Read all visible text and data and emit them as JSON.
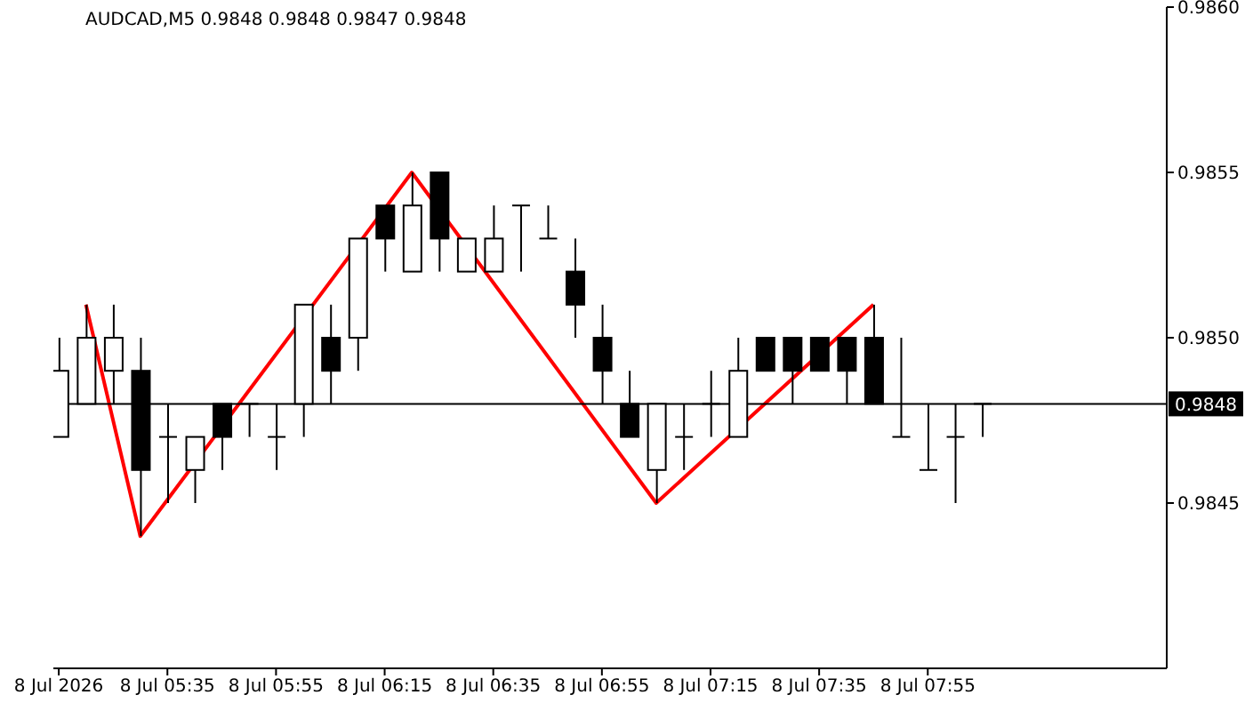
{
  "chart_data": {
    "type": "candlestick",
    "title": "AUDCAD,M5 0.9848 0.9848 0.9847 0.9848",
    "xlim": [
      "2026-07-08T05:14",
      "2026-07-08T08:39"
    ],
    "xticks": [
      {
        "value": "2026-07-08T05:15",
        "label": "8 Jul 2026"
      },
      {
        "value": "2026-07-08T05:35",
        "label": "8 Jul 05:35"
      },
      {
        "value": "2026-07-08T05:55",
        "label": "8 Jul 05:55"
      },
      {
        "value": "2026-07-08T06:15",
        "label": "8 Jul 06:15"
      },
      {
        "value": "2026-07-08T06:35",
        "label": "8 Jul 06:35"
      },
      {
        "value": "2026-07-08T06:55",
        "label": "8 Jul 06:55"
      },
      {
        "value": "2026-07-08T07:15",
        "label": "8 Jul 07:15"
      },
      {
        "value": "2026-07-08T07:35",
        "label": "8 Jul 07:35"
      },
      {
        "value": "2026-07-08T07:55",
        "label": "8 Jul 07:55"
      }
    ],
    "ylim": [
      0.984,
      0.986
    ],
    "yticks": [
      {
        "value": 0.9845,
        "label": "0.9845"
      },
      {
        "value": 0.985,
        "label": "0.9850"
      },
      {
        "value": 0.9855,
        "label": "0.9855"
      },
      {
        "value": 0.986,
        "label": "0.9860"
      }
    ],
    "grid": false,
    "ref_lines": [
      {
        "axis": "y",
        "value": 0.9848,
        "label": "0.9848",
        "color": "#000000"
      }
    ],
    "series": [
      {
        "color": "#000000",
        "x": [
          "2026-07-08T05:15",
          "2026-07-08T05:20",
          "2026-07-08T05:25",
          "2026-07-08T05:30",
          "2026-07-08T05:35",
          "2026-07-08T05:40",
          "2026-07-08T05:45",
          "2026-07-08T05:50",
          "2026-07-08T05:55",
          "2026-07-08T06:00",
          "2026-07-08T06:05",
          "2026-07-08T06:10",
          "2026-07-08T06:15",
          "2026-07-08T06:20",
          "2026-07-08T06:25",
          "2026-07-08T06:30",
          "2026-07-08T06:35",
          "2026-07-08T06:40",
          "2026-07-08T06:45",
          "2026-07-08T06:50",
          "2026-07-08T06:55",
          "2026-07-08T07:00",
          "2026-07-08T07:05",
          "2026-07-08T07:10",
          "2026-07-08T07:15",
          "2026-07-08T07:20",
          "2026-07-08T07:25",
          "2026-07-08T07:30",
          "2026-07-08T07:35",
          "2026-07-08T07:40",
          "2026-07-08T07:45",
          "2026-07-08T07:50",
          "2026-07-08T07:55",
          "2026-07-08T08:00",
          "2026-07-08T08:05"
        ],
        "ohlc": [
          [
            0.9847,
            0.985,
            0.9847,
            0.9849
          ],
          [
            0.9848,
            0.9851,
            0.9848,
            0.985
          ],
          [
            0.9849,
            0.9851,
            0.9848,
            0.985
          ],
          [
            0.9849,
            0.985,
            0.9844,
            0.9846
          ],
          [
            0.9847,
            0.9848,
            0.9845,
            0.9847
          ],
          [
            0.9846,
            0.9847,
            0.9845,
            0.9847
          ],
          [
            0.9848,
            0.9848,
            0.9846,
            0.9847
          ],
          [
            0.9848,
            0.9848,
            0.9847,
            0.9848
          ],
          [
            0.9847,
            0.9848,
            0.9846,
            0.9847
          ],
          [
            0.9848,
            0.9851,
            0.9847,
            0.9851
          ],
          [
            0.985,
            0.9851,
            0.9848,
            0.9849
          ],
          [
            0.985,
            0.9853,
            0.9849,
            0.9853
          ],
          [
            0.9854,
            0.9854,
            0.9852,
            0.9853
          ],
          [
            0.9852,
            0.9855,
            0.9852,
            0.9854
          ],
          [
            0.9855,
            0.9855,
            0.9852,
            0.9853
          ],
          [
            0.9852,
            0.9853,
            0.9852,
            0.9853
          ],
          [
            0.9852,
            0.9854,
            0.9852,
            0.9853
          ],
          [
            0.9854,
            0.9854,
            0.9852,
            0.9854
          ],
          [
            0.9853,
            0.9854,
            0.9853,
            0.9853
          ],
          [
            0.9852,
            0.9853,
            0.985,
            0.9851
          ],
          [
            0.985,
            0.9851,
            0.9848,
            0.9849
          ],
          [
            0.9848,
            0.9849,
            0.9847,
            0.9847
          ],
          [
            0.9846,
            0.9848,
            0.9845,
            0.9848
          ],
          [
            0.9847,
            0.9848,
            0.9846,
            0.9847
          ],
          [
            0.9848,
            0.9849,
            0.9847,
            0.9848
          ],
          [
            0.9847,
            0.985,
            0.9847,
            0.9849
          ],
          [
            0.985,
            0.985,
            0.9849,
            0.9849
          ],
          [
            0.985,
            0.985,
            0.9848,
            0.9849
          ],
          [
            0.985,
            0.985,
            0.9849,
            0.9849
          ],
          [
            0.985,
            0.985,
            0.9848,
            0.9849
          ],
          [
            0.985,
            0.9851,
            0.9848,
            0.9848
          ],
          [
            0.9847,
            0.985,
            0.9847,
            0.9847
          ],
          [
            0.9846,
            0.9848,
            0.9846,
            0.9846
          ],
          [
            0.9847,
            0.9848,
            0.9845,
            0.9847
          ],
          [
            0.9848,
            0.9848,
            0.9847,
            0.9848
          ]
        ]
      },
      {
        "type": "line",
        "color": "#ff0000",
        "x": [
          "2026-07-08T05:20",
          "2026-07-08T05:30",
          "2026-07-08T06:20",
          "2026-07-08T07:05",
          "2026-07-08T07:45"
        ],
        "values": [
          0.9851,
          0.9844,
          0.9855,
          0.9845,
          0.9851
        ]
      }
    ]
  }
}
